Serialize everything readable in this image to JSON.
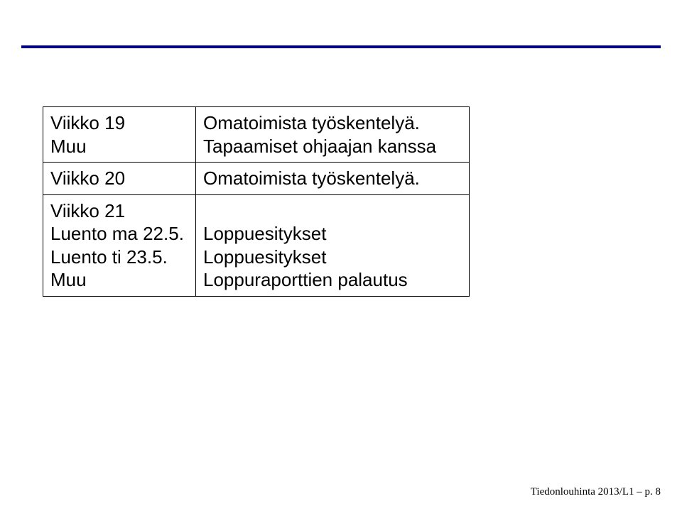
{
  "rule_color": "#000080",
  "table": {
    "border_color": "#000000",
    "cell_fontsize": 26,
    "rows": [
      {
        "left": "Viikko 19\nMuu",
        "right": "Omatoimista työskentelyä.\nTapaamiset ohjaajan kanssa"
      },
      {
        "left": "Viikko 20",
        "right": "Omatoimista työskentelyä."
      },
      {
        "left": "Viikko 21\nLuento ma 22.5.\nLuento ti 23.5.\nMuu",
        "right": "\nLoppuesitykset\nLoppuesitykset\nLoppuraporttien palautus"
      }
    ]
  },
  "footer": "Tiedonlouhinta 2013/L1 – p. 8"
}
